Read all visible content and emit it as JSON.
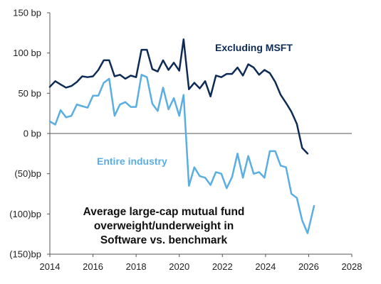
{
  "chart_data": {
    "type": "line",
    "title": "",
    "xlabel": "",
    "ylabel": "",
    "xlim": [
      2014,
      2028
    ],
    "ylim": [
      -150,
      150
    ],
    "x_ticks": [
      2014,
      2016,
      2018,
      2020,
      2022,
      2024,
      2026,
      2028
    ],
    "x_tick_labels": [
      "2014",
      "2016",
      "2018",
      "2020",
      "2022",
      "2024",
      "2026",
      "2028"
    ],
    "y_ticks": [
      150,
      100,
      50,
      0,
      -50,
      -100,
      -150
    ],
    "y_tick_labels": [
      "150 bp",
      "100 bp",
      "50 bp",
      "0 bp",
      "(50)bp",
      "(100)bp",
      "(150)bp"
    ],
    "grid": false,
    "annotation": {
      "lines": [
        "Average large-cap mutual fund",
        "overweight/underweight in",
        "Software vs. benchmark"
      ]
    },
    "series": [
      {
        "name": "Excluding MSFT",
        "color": "#0d2b55",
        "points": [
          [
            2014.0,
            58
          ],
          [
            2014.25,
            65
          ],
          [
            2014.5,
            61
          ],
          [
            2014.75,
            57
          ],
          [
            2015.0,
            59
          ],
          [
            2015.25,
            64
          ],
          [
            2015.5,
            71
          ],
          [
            2015.75,
            70
          ],
          [
            2016.0,
            71
          ],
          [
            2016.25,
            79
          ],
          [
            2016.5,
            91
          ],
          [
            2016.75,
            91
          ],
          [
            2017.0,
            71
          ],
          [
            2017.25,
            73
          ],
          [
            2017.5,
            68
          ],
          [
            2017.75,
            72
          ],
          [
            2018.0,
            70
          ],
          [
            2018.25,
            104
          ],
          [
            2018.5,
            104
          ],
          [
            2018.75,
            80
          ],
          [
            2019.0,
            77
          ],
          [
            2019.25,
            91
          ],
          [
            2019.5,
            79
          ],
          [
            2019.75,
            88
          ],
          [
            2020.0,
            78
          ],
          [
            2020.2,
            117
          ],
          [
            2020.45,
            55
          ],
          [
            2020.7,
            63
          ],
          [
            2020.95,
            56
          ],
          [
            2021.2,
            65
          ],
          [
            2021.45,
            46
          ],
          [
            2021.7,
            72
          ],
          [
            2021.95,
            70
          ],
          [
            2022.2,
            74
          ],
          [
            2022.45,
            74
          ],
          [
            2022.7,
            82
          ],
          [
            2022.95,
            72
          ],
          [
            2023.2,
            86
          ],
          [
            2023.45,
            82
          ],
          [
            2023.7,
            73
          ],
          [
            2023.95,
            79
          ],
          [
            2024.2,
            75
          ],
          [
            2024.45,
            64
          ],
          [
            2024.7,
            48
          ],
          [
            2024.95,
            38
          ],
          [
            2025.2,
            27
          ],
          [
            2025.45,
            12
          ],
          [
            2025.7,
            -18
          ],
          [
            2025.95,
            -25
          ]
        ]
      },
      {
        "name": "Entire industry",
        "color": "#5aaee3",
        "points": [
          [
            2014.0,
            15
          ],
          [
            2014.25,
            11
          ],
          [
            2014.5,
            29
          ],
          [
            2014.75,
            20
          ],
          [
            2015.0,
            22
          ],
          [
            2015.25,
            36
          ],
          [
            2015.5,
            34
          ],
          [
            2015.75,
            32
          ],
          [
            2016.0,
            47
          ],
          [
            2016.25,
            47
          ],
          [
            2016.5,
            63
          ],
          [
            2016.75,
            68
          ],
          [
            2017.0,
            22
          ],
          [
            2017.25,
            36
          ],
          [
            2017.5,
            39
          ],
          [
            2017.75,
            33
          ],
          [
            2018.0,
            33
          ],
          [
            2018.25,
            73
          ],
          [
            2018.5,
            70
          ],
          [
            2018.75,
            37
          ],
          [
            2019.0,
            28
          ],
          [
            2019.25,
            57
          ],
          [
            2019.5,
            30
          ],
          [
            2019.75,
            44
          ],
          [
            2020.0,
            22
          ],
          [
            2020.2,
            48
          ],
          [
            2020.45,
            -65
          ],
          [
            2020.7,
            -42
          ],
          [
            2020.95,
            -53
          ],
          [
            2021.2,
            -55
          ],
          [
            2021.45,
            -64
          ],
          [
            2021.7,
            -48
          ],
          [
            2021.95,
            -50
          ],
          [
            2022.2,
            -68
          ],
          [
            2022.45,
            -54
          ],
          [
            2022.7,
            -25
          ],
          [
            2022.95,
            -55
          ],
          [
            2023.2,
            -28
          ],
          [
            2023.45,
            -50
          ],
          [
            2023.7,
            -48
          ],
          [
            2023.95,
            -55
          ],
          [
            2024.2,
            -22
          ],
          [
            2024.45,
            -22
          ],
          [
            2024.7,
            -40
          ],
          [
            2024.95,
            -42
          ],
          [
            2025.2,
            -75
          ],
          [
            2025.45,
            -80
          ],
          [
            2025.7,
            -108
          ],
          [
            2025.95,
            -124
          ],
          [
            2026.25,
            -90
          ]
        ]
      }
    ]
  }
}
